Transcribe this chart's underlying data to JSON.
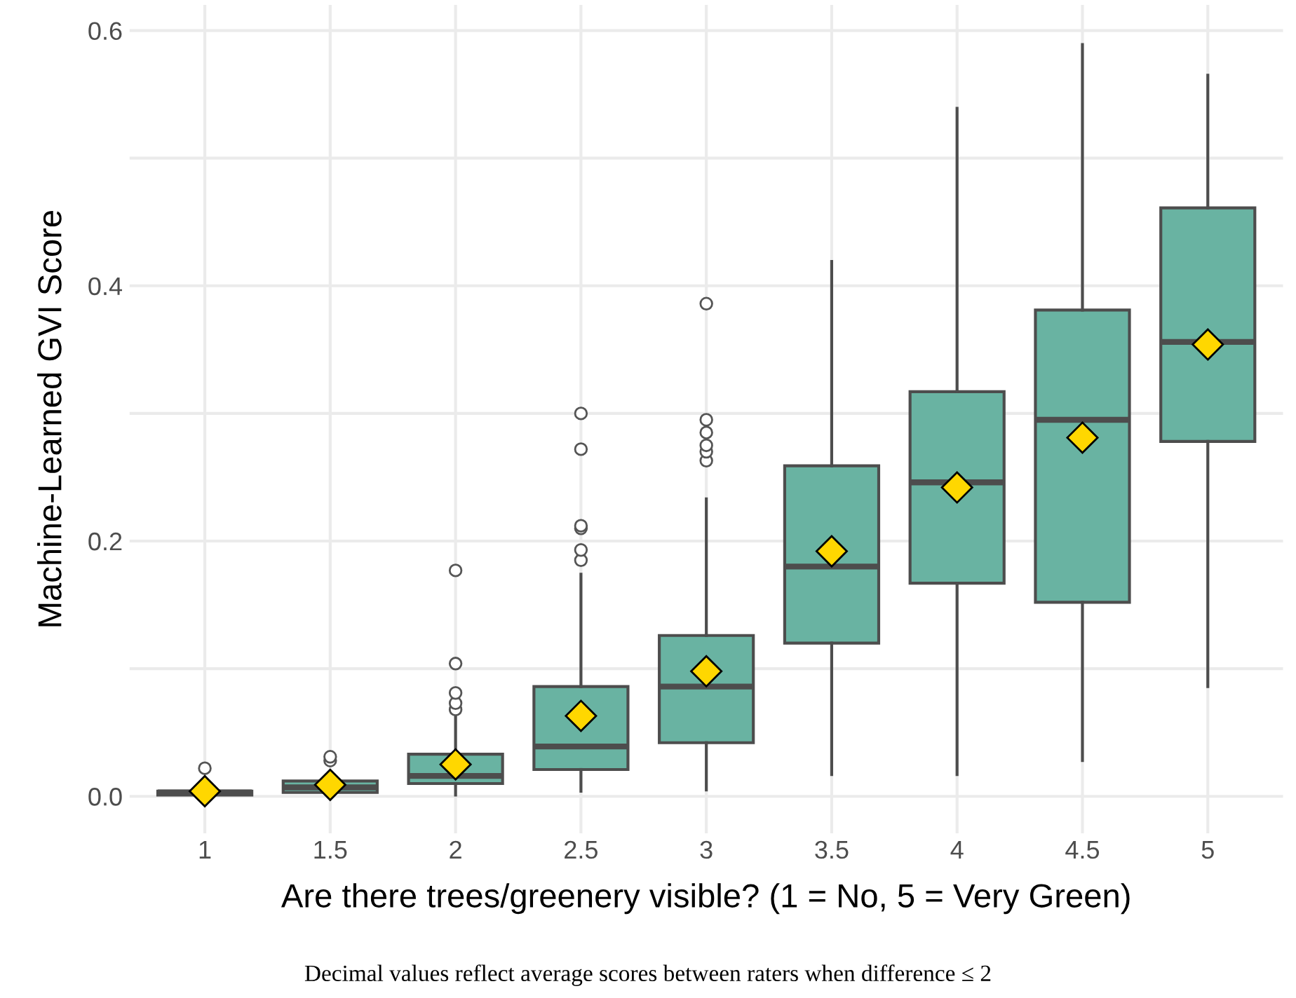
{
  "chart_data": {
    "type": "box",
    "xlabel": "Are there trees/greenery visible? (1 = No, 5 = Very Green)",
    "ylabel": "Machine-Learned GVI Score",
    "annotations": [
      "Decimal values reflect average scores between raters when difference ≤ 2"
    ],
    "categories": [
      "1",
      "1.5",
      "2",
      "2.5",
      "3",
      "3.5",
      "4",
      "4.5",
      "5"
    ],
    "color": "#69b3a2",
    "marker": "diamond",
    "boxes": [
      {
        "low": 0.0,
        "q1": 0.001,
        "median": 0.003,
        "q3": 0.004,
        "high": 0.006,
        "mean": 0.004,
        "outliers": [
          0.022
        ]
      },
      {
        "low": 0.002,
        "q1": 0.003,
        "median": 0.007,
        "q3": 0.012,
        "high": 0.014,
        "mean": 0.009,
        "outliers": [
          0.028,
          0.031
        ]
      },
      {
        "low": 0.001,
        "q1": 0.01,
        "median": 0.016,
        "q3": 0.033,
        "high": 0.063,
        "mean": 0.025,
        "outliers": [
          0.068,
          0.073,
          0.081,
          0.104,
          0.177
        ]
      },
      {
        "low": 0.004,
        "q1": 0.021,
        "median": 0.039,
        "q3": 0.086,
        "high": 0.174,
        "mean": 0.063,
        "outliers": [
          0.185,
          0.193,
          0.21,
          0.212,
          0.272,
          0.3
        ]
      },
      {
        "low": 0.005,
        "q1": 0.042,
        "median": 0.086,
        "q3": 0.126,
        "high": 0.233,
        "mean": 0.098,
        "outliers": [
          0.263,
          0.27,
          0.275,
          0.285,
          0.295,
          0.386
        ]
      },
      {
        "low": 0.017,
        "q1": 0.12,
        "median": 0.18,
        "q3": 0.259,
        "high": 0.419,
        "mean": 0.192
      },
      {
        "low": 0.017,
        "q1": 0.167,
        "median": 0.246,
        "q3": 0.317,
        "high": 0.539,
        "mean": 0.242
      },
      {
        "low": 0.028,
        "q1": 0.152,
        "median": 0.295,
        "q3": 0.381,
        "high": 0.589,
        "mean": 0.281
      },
      {
        "low": 0.086,
        "q1": 0.278,
        "median": 0.356,
        "q3": 0.461,
        "high": 0.565,
        "mean": 0.354
      }
    ],
    "ylim": [
      -0.029,
      0.62
    ],
    "yticks": [
      {
        "value": 0,
        "label": "0.0"
      },
      {
        "value": 0.1,
        "label": null
      },
      0.2,
      {
        "value": 0.3,
        "label": null
      },
      0.4,
      {
        "value": 0.5,
        "label": null
      },
      0.6
    ],
    "grid": true,
    "legend": false
  }
}
